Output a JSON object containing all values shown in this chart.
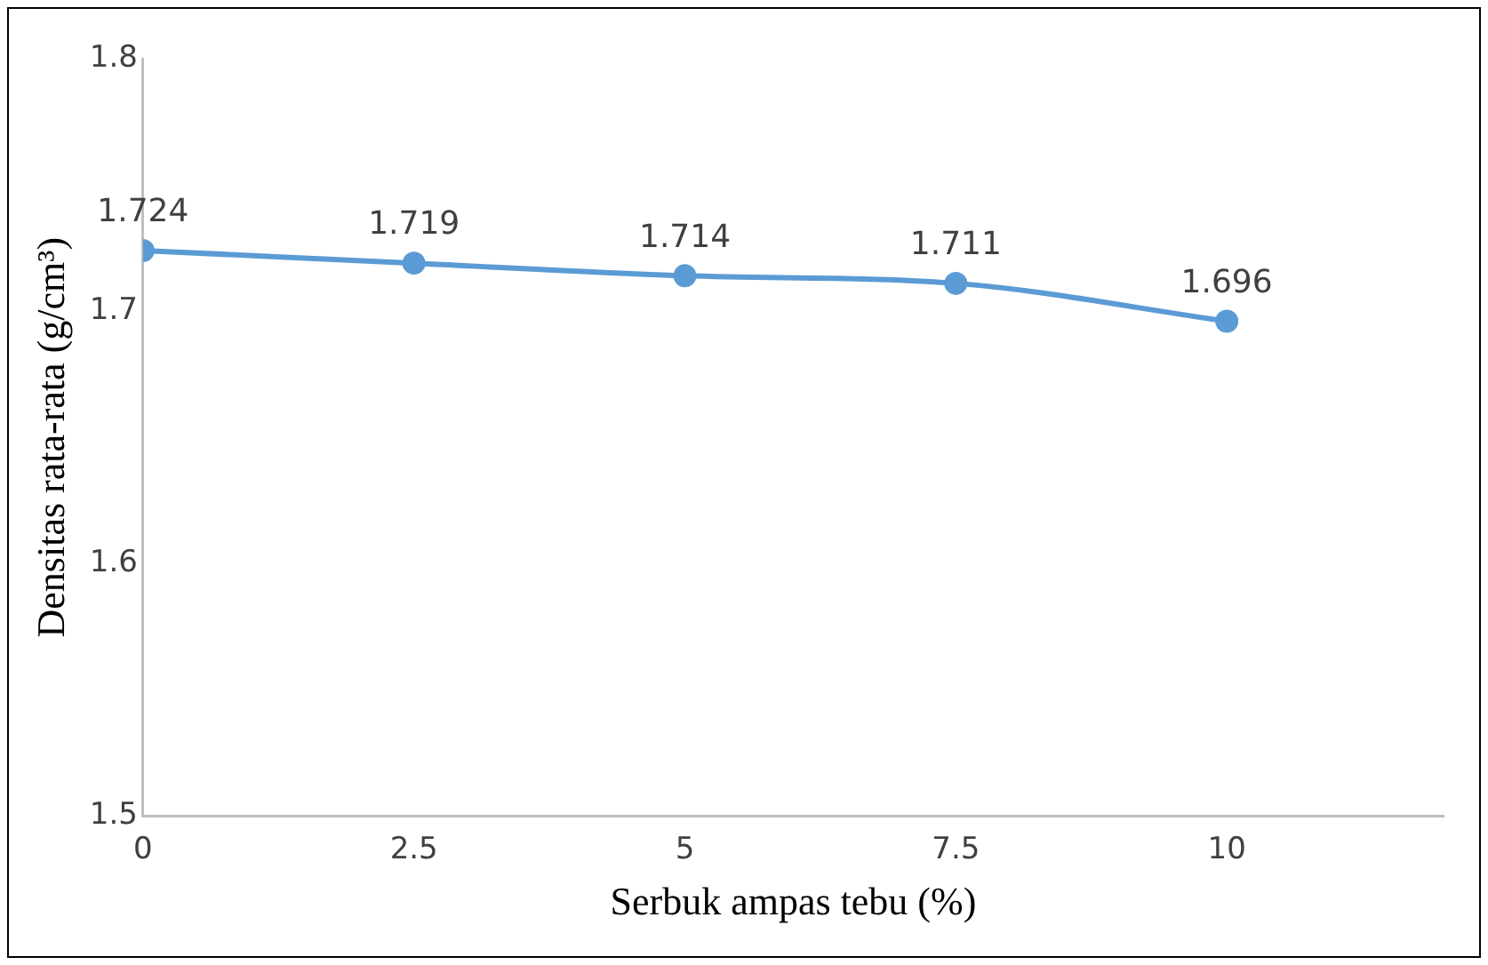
{
  "chart_data": {
    "type": "line",
    "xlabel": "Serbuk ampas tebu (%)",
    "ylabel": "Densitas rata-rata (g/cm³)",
    "x": [
      0,
      2.5,
      5,
      7.5,
      10
    ],
    "series": [
      {
        "color": "#5b9bd5",
        "values": [
          1.724,
          1.719,
          1.714,
          1.711,
          1.696
        ]
      }
    ],
    "xlim": [
      0,
      12
    ],
    "xticks": [
      0,
      2.5,
      5,
      7.5,
      10
    ],
    "ylim": [
      1.5,
      1.8
    ],
    "yticks": [
      1.5,
      1.6,
      1.7,
      1.8
    ],
    "grid": false,
    "legend": false,
    "marker": "circle",
    "line_style": "solid",
    "data_labels": true
  }
}
